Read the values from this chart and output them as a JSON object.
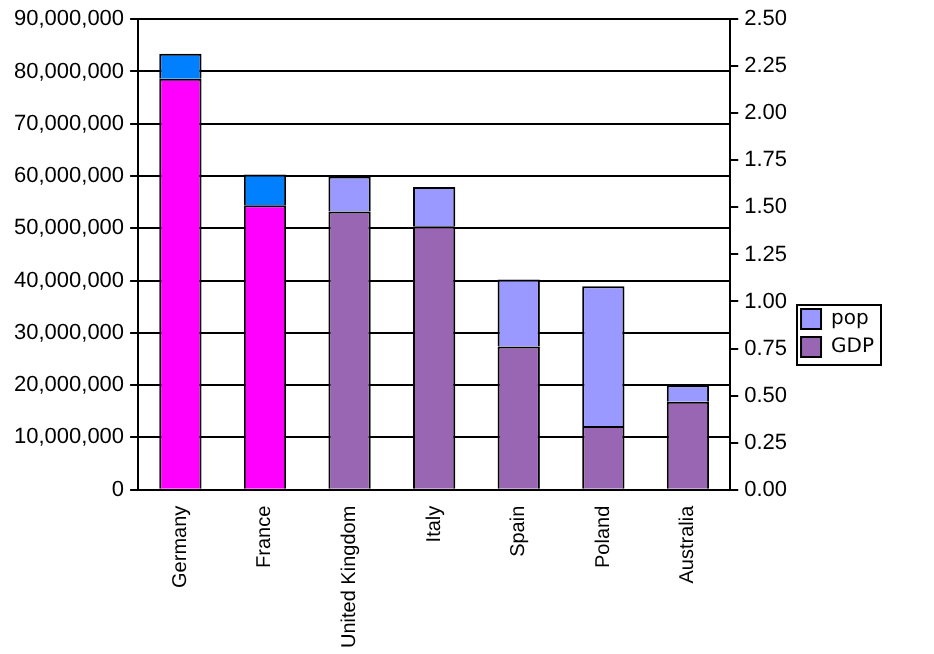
{
  "chart_data": {
    "type": "bar",
    "stacked": true,
    "categories": [
      "Germany",
      "France",
      "United Kingdom",
      "Italy",
      "Spain",
      "Poland",
      "Australia"
    ],
    "series": [
      {
        "name": "GDP",
        "color": "#9966b3",
        "colors": [
          "#ff00ff",
          "#ff00ff",
          "#9966b3",
          "#9966b3",
          "#9966b3",
          "#9966b3",
          "#9966b3"
        ],
        "values": [
          78600000.0,
          54400000.0,
          53200000.0,
          50400000.0,
          27400000.0,
          12200000.0,
          16800000.0
        ]
      },
      {
        "name": "pop",
        "color": "#9999ff",
        "colors": [
          "#0080ff",
          "#0080ff",
          "#9999ff",
          "#9999ff",
          "#9999ff",
          "#9999ff",
          "#9999ff"
        ],
        "values": [
          4800000.0,
          5900000.0,
          6700000.0,
          7500000.0,
          12800000.0,
          26700000.0,
          3200000.0
        ]
      }
    ],
    "ylim": [
      0,
      90000000
    ],
    "yticks": [
      0,
      {
        "value": 10000000,
        "label": "10,000,000"
      },
      {
        "value": 20000000,
        "label": "20,000,000"
      },
      {
        "value": 30000000,
        "label": "30,000,000"
      },
      {
        "value": 40000000,
        "label": "40,000,000"
      },
      {
        "value": 50000000,
        "label": "50,000,000"
      },
      {
        "value": 60000000,
        "label": "60,000,000"
      },
      {
        "value": 70000000,
        "label": "70,000,000"
      },
      {
        "value": 80000000,
        "label": "80,000,000"
      },
      {
        "value": 90000000,
        "label": "90,000,000"
      }
    ],
    "y2lim": [
      0,
      2.5
    ],
    "y2ticks": [
      {
        "value": 0,
        "label": "0.00"
      },
      {
        "value": 0.25,
        "label": "0.25"
      },
      {
        "value": 0.5,
        "label": "0.50"
      },
      {
        "value": 0.75,
        "label": "0.75"
      },
      {
        "value": 1,
        "label": "1.00"
      },
      {
        "value": 1.25,
        "label": "1.25"
      },
      {
        "value": 1.5,
        "label": "1.50"
      },
      {
        "value": 1.75,
        "label": "1.75"
      },
      {
        "value": 2,
        "label": "2.00"
      },
      {
        "value": 2.25,
        "label": "2.25"
      },
      {
        "value": 2.5,
        "label": "2.50"
      }
    ],
    "grid": "y",
    "legend": "right"
  }
}
